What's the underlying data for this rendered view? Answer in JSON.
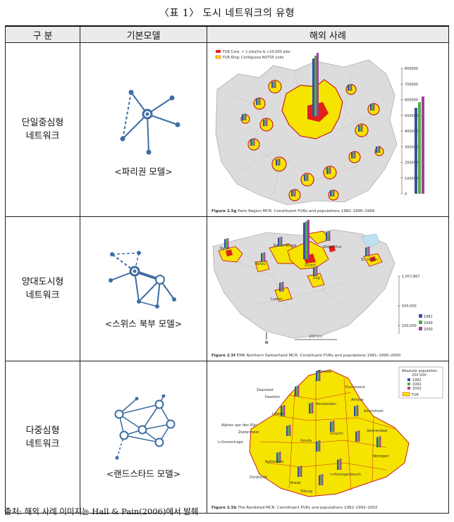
{
  "caption": "〈표 1〉 도시 네트워크의 유형",
  "header": {
    "col1": "구   분",
    "col2": "기본모델",
    "col3": "해외 사례"
  },
  "rows": [
    {
      "type_line1": "단일중심형",
      "type_line2": "네트워크",
      "model_label": "<파리권 모델>",
      "figure_caption_bold": "Figure 2.5g",
      "figure_caption": " Paris Region MCR: Constituent FURs and populations 1982–1990–1999",
      "legend": [
        "FUR Core: > 1 jobs/ha & >20,000 jobs",
        "FUR Ring: Contiguous NUTS5 units"
      ],
      "scale_ticks": [
        "800000",
        "700000",
        "600000",
        "500000",
        "400000",
        "300000",
        "200000",
        "100000",
        "0"
      ]
    },
    {
      "type_line1": "양대도시형",
      "type_line2": "네트워크",
      "model_label": "<스위스 북부 모델>",
      "figure_caption_bold": "Figure 2.5f",
      "figure_caption": " EMR Northern Switzerland MCR: Constituent FURs and populations 1981–1990–2000",
      "places": [
        "Basel",
        "Aarau",
        "Baden-Brugg",
        "Zürich",
        "Winterthur",
        "St. Gallen",
        "Zug",
        "Luzern"
      ],
      "scale_ticks": [
        "1,057,867",
        "500,000",
        "100,000"
      ],
      "legend_years": [
        "1981",
        "1990",
        "2000"
      ],
      "distance": "100 km"
    },
    {
      "type_line1": "다중심형",
      "type_line2": "네트워크",
      "model_label": "<랜드스타드 모델>",
      "figure_caption_bold": "Figure 2.5b",
      "figure_caption": " The Randstad MCR: Constituent FURs and populations 1982–1992–2002",
      "places": [
        "Alkmaar",
        "Purmerend",
        "Haarlem",
        "Zaanstad",
        "Amsterdam",
        "Almere",
        "Amersfoort",
        "Leiden",
        "Alphen aan den Rijn",
        "Utrecht",
        "Veenendaal",
        "Zoetermeer",
        "'s-Gravenhage",
        "Gouda",
        "Rotterdam",
        "Nijmegen",
        "Breda",
        "Dordrecht",
        "'s-Hertogenbosch",
        "Tilburg"
      ],
      "legend_title": "Absolute population",
      "legend_value": "250 000",
      "legend_years": [
        "1982",
        "1992",
        "2002"
      ],
      "legend_fur": "FUR"
    }
  ],
  "colors": {
    "map_yellow": "#f5e400",
    "map_border": "#c8211e",
    "map_grey": "#dcdcdc",
    "model_blue": "#3d6ea3",
    "bar_blue": "#3a4fa0",
    "bar_green": "#56a84a",
    "bar_purple": "#9d3f9a"
  },
  "source": "출처: 해외 사례 이미지는 Hall & Pain(2006)에서 발췌"
}
